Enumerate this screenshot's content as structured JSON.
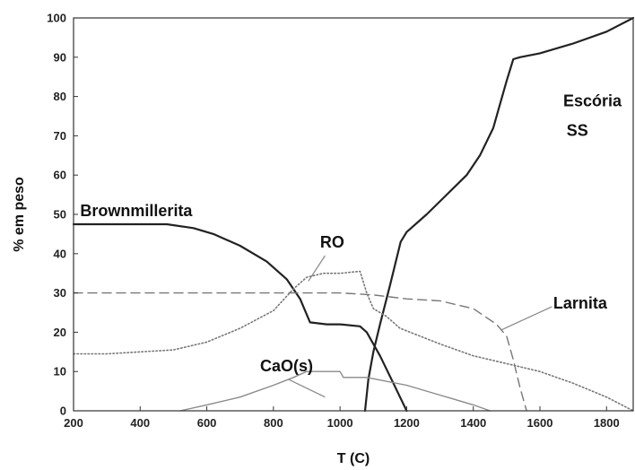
{
  "chart_data": {
    "type": "line",
    "xlabel": "T (C)",
    "ylabel": "% em peso",
    "xlim": [
      200,
      1880
    ],
    "ylim": [
      0,
      100
    ],
    "xticks": [
      200,
      400,
      600,
      800,
      1000,
      1200,
      1400,
      1600,
      1800
    ],
    "yticks": [
      0,
      10,
      20,
      30,
      40,
      50,
      60,
      70,
      80,
      90,
      100
    ],
    "grid": false,
    "legend": "none",
    "series": [
      {
        "style": "solid-thick",
        "color": "#222222",
        "points": [
          [
            200,
            47.5
          ],
          [
            480,
            47.5
          ],
          [
            560,
            46.5
          ],
          [
            620,
            45
          ],
          [
            700,
            42
          ],
          [
            780,
            38
          ],
          [
            840,
            33.5
          ],
          [
            880,
            28.5
          ],
          [
            910,
            22.5
          ],
          [
            960,
            22
          ],
          [
            1000,
            22
          ],
          [
            1060,
            21.5
          ],
          [
            1080,
            20
          ],
          [
            1120,
            14
          ],
          [
            1160,
            7
          ],
          [
            1200,
            0
          ]
        ]
      },
      {
        "style": "solid-thick",
        "color": "#222222",
        "points": [
          [
            1075,
            0
          ],
          [
            1085,
            8
          ],
          [
            1100,
            15
          ],
          [
            1120,
            22
          ],
          [
            1150,
            32
          ],
          [
            1182,
            43
          ],
          [
            1200,
            45.5
          ],
          [
            1260,
            50
          ],
          [
            1320,
            55
          ],
          [
            1380,
            60
          ],
          [
            1420,
            65
          ],
          [
            1460,
            72
          ],
          [
            1480,
            78
          ],
          [
            1500,
            84
          ],
          [
            1520,
            89.5
          ],
          [
            1540,
            90
          ],
          [
            1600,
            91
          ],
          [
            1700,
            93.5
          ],
          [
            1800,
            96.5
          ],
          [
            1880,
            100
          ]
        ]
      },
      {
        "style": "dotted",
        "color": "#777777",
        "points": [
          [
            200,
            14.5
          ],
          [
            300,
            14.5
          ],
          [
            500,
            15.5
          ],
          [
            600,
            17.5
          ],
          [
            700,
            21
          ],
          [
            800,
            25.5
          ],
          [
            860,
            31
          ],
          [
            900,
            34
          ],
          [
            950,
            35
          ],
          [
            1000,
            35
          ],
          [
            1060,
            35.5
          ],
          [
            1080,
            30
          ],
          [
            1100,
            26
          ],
          [
            1140,
            24
          ],
          [
            1180,
            21
          ],
          [
            1300,
            17
          ],
          [
            1400,
            14
          ],
          [
            1500,
            12
          ],
          [
            1600,
            10
          ],
          [
            1700,
            7
          ],
          [
            1800,
            3.5
          ],
          [
            1880,
            0
          ]
        ]
      },
      {
        "style": "dashed",
        "color": "#777777",
        "points": [
          [
            200,
            30
          ],
          [
            1000,
            30
          ],
          [
            1100,
            29.5
          ],
          [
            1200,
            28.5
          ],
          [
            1300,
            28
          ],
          [
            1400,
            26
          ],
          [
            1470,
            22
          ],
          [
            1500,
            19
          ],
          [
            1520,
            13
          ],
          [
            1540,
            6
          ],
          [
            1560,
            0
          ]
        ]
      },
      {
        "style": "solid-thin",
        "color": "#8a8a8a",
        "points": [
          [
            520,
            0
          ],
          [
            600,
            1.5
          ],
          [
            700,
            3.5
          ],
          [
            800,
            6.5
          ],
          [
            860,
            8.5
          ],
          [
            900,
            10
          ],
          [
            1000,
            10
          ],
          [
            1010,
            8.5
          ],
          [
            1080,
            8.5
          ],
          [
            1200,
            6.5
          ],
          [
            1300,
            4
          ],
          [
            1400,
            1.5
          ],
          [
            1450,
            0
          ]
        ]
      }
    ],
    "annotations": [
      {
        "text": "Brownmillerita",
        "at": [
          220,
          49.5
        ]
      },
      {
        "text": "RO",
        "at": [
          940,
          41.5
        ]
      },
      {
        "text": "CaO(s)",
        "at": [
          760,
          10
        ]
      },
      {
        "text": "Larnita",
        "at": [
          1640,
          26
        ]
      },
      {
        "text": "Escória",
        "at": [
          1670,
          77.5
        ]
      },
      {
        "text": "SS",
        "at": [
          1680,
          70
        ]
      }
    ],
    "leaders": [
      {
        "from": [
          955,
          39.5
        ],
        "to": [
          905,
          33
        ]
      },
      {
        "from": [
          1636,
          26.5
        ],
        "to": [
          1482,
          20.5
        ]
      },
      {
        "from": [
          845,
          8
        ],
        "to": [
          955,
          3.5
        ]
      }
    ]
  }
}
